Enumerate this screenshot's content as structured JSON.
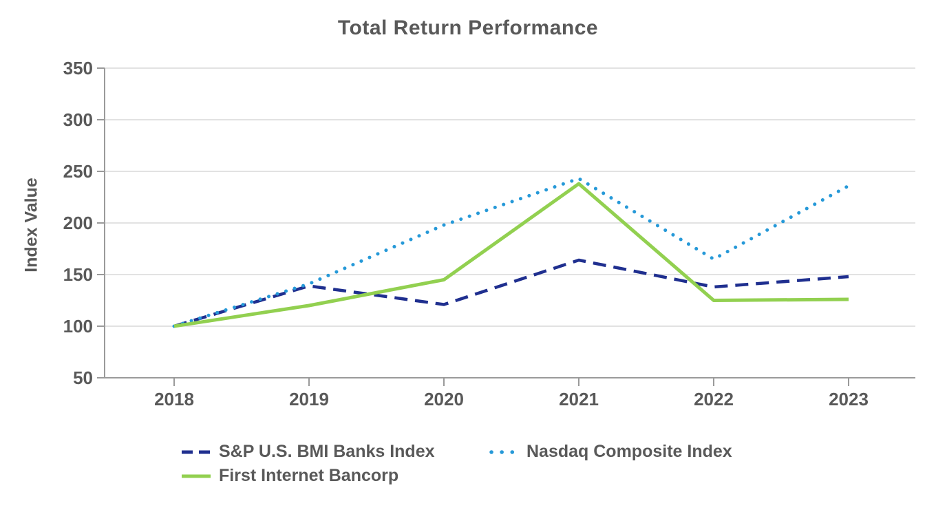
{
  "chart_data": {
    "type": "line",
    "title": "Total Return Performance",
    "xlabel": "",
    "ylabel": "Index Value",
    "categories": [
      "2018",
      "2019",
      "2020",
      "2021",
      "2022",
      "2023"
    ],
    "ylim": [
      50,
      350
    ],
    "yticks": [
      350,
      300,
      250,
      200,
      150,
      100,
      50
    ],
    "grid": "horizontal-light",
    "legend_position": "bottom",
    "series": [
      {
        "id": "sp-us-bmi-banks-index",
        "name": "S&P U.S. BMI Banks Index",
        "style": "dashed",
        "color": "#1F2F8F",
        "values": [
          100,
          139,
          121,
          164,
          138,
          148
        ]
      },
      {
        "id": "nasdaq-composite-index",
        "name": "Nasdaq Composite Index",
        "style": "dotted",
        "color": "#2699D8",
        "values": [
          100,
          141,
          198,
          243,
          165,
          236
        ]
      },
      {
        "id": "first-internet-bancorp",
        "name": "First Internet Bancorp",
        "style": "solid",
        "color": "#92D050",
        "values": [
          100,
          120,
          145,
          238,
          125,
          126
        ]
      }
    ],
    "colors": {
      "text": "#595959",
      "gridline": "#D9D9D9",
      "axis": "#9A9A9A",
      "background": "#FFFFFF"
    }
  }
}
